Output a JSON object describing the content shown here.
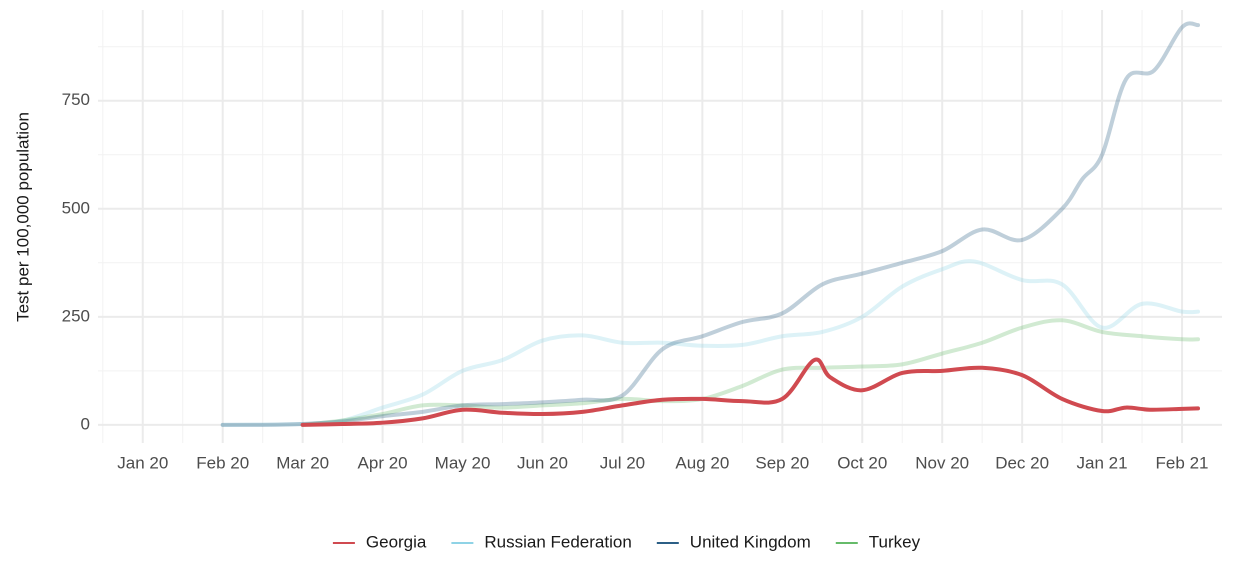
{
  "chart_data": {
    "type": "line",
    "ylabel": "Test per 100,000 population",
    "xlim": [
      -0.56,
      13.5
    ],
    "xticks": [
      {
        "value": 0,
        "label": "Jan 20"
      },
      {
        "value": 1,
        "label": "Feb 20"
      },
      {
        "value": 2,
        "label": "Mar 20"
      },
      {
        "value": 3,
        "label": "Apr 20"
      },
      {
        "value": 4,
        "label": "May 20"
      },
      {
        "value": 5,
        "label": "Jun 20"
      },
      {
        "value": 6,
        "label": "Jul 20"
      },
      {
        "value": 7,
        "label": "Aug 20"
      },
      {
        "value": 8,
        "label": "Sep 20"
      },
      {
        "value": 9,
        "label": "Oct 20"
      },
      {
        "value": 10,
        "label": "Nov 20"
      },
      {
        "value": 11,
        "label": "Dec 20"
      },
      {
        "value": 12,
        "label": "Jan 21"
      },
      {
        "value": 13,
        "label": "Feb 21"
      }
    ],
    "ylim": [
      -42,
      960
    ],
    "yticks": [
      0,
      250,
      500,
      750
    ],
    "grid": true,
    "legend": "bottom",
    "series": [
      {
        "name": "Georgia",
        "color": "#d04a50",
        "alpha": 1,
        "x": [
          2,
          2.5,
          3,
          3.5,
          4,
          4.5,
          5,
          5.5,
          6,
          6.5,
          7,
          7.5,
          8,
          8.4,
          8.6,
          9,
          9.5,
          10,
          10.5,
          11,
          11.5,
          12,
          12.3,
          12.6,
          13,
          13.2
        ],
        "values": [
          0,
          2,
          5,
          15,
          35,
          28,
          25,
          30,
          45,
          58,
          60,
          55,
          60,
          150,
          110,
          80,
          120,
          125,
          132,
          115,
          60,
          32,
          40,
          35,
          37,
          38
        ]
      },
      {
        "name": "Russian Federation",
        "color": "#8fd3e6",
        "alpha": 0.3,
        "x": [
          1,
          2,
          2.5,
          3,
          3.5,
          4,
          4.5,
          5,
          5.5,
          6,
          6.5,
          7,
          7.5,
          8,
          8.5,
          9,
          9.5,
          10,
          10.4,
          11,
          11.5,
          12,
          12.5,
          13,
          13.2
        ],
        "values": [
          0,
          2,
          10,
          40,
          70,
          125,
          150,
          195,
          207,
          190,
          190,
          183,
          185,
          205,
          215,
          250,
          320,
          360,
          378,
          335,
          325,
          225,
          280,
          262,
          262
        ]
      },
      {
        "name": "United Kingdom",
        "color": "#2c5f86",
        "alpha": 0.3,
        "x": [
          1,
          1.5,
          2,
          2.5,
          3,
          3.5,
          4,
          4.5,
          5,
          5.5,
          6,
          6.5,
          7,
          7.5,
          8,
          8.5,
          9,
          9.5,
          10,
          10.5,
          11,
          11.5,
          11.75,
          12,
          12.3,
          12.65,
          13,
          13.2
        ],
        "values": [
          0,
          0,
          2,
          8,
          20,
          30,
          45,
          48,
          52,
          58,
          68,
          175,
          205,
          238,
          258,
          325,
          350,
          375,
          402,
          452,
          428,
          500,
          568,
          625,
          800,
          820,
          920,
          925
        ]
      },
      {
        "name": "Turkey",
        "color": "#66bb6a",
        "alpha": 0.3,
        "x": [
          2,
          2.5,
          3,
          3.5,
          4,
          4.5,
          5,
          5.5,
          6,
          6.5,
          7,
          7.5,
          8,
          8.5,
          9,
          9.5,
          10,
          10.5,
          11,
          11.5,
          12,
          12.5,
          13,
          13.2
        ],
        "values": [
          0,
          10,
          25,
          45,
          45,
          40,
          45,
          50,
          60,
          55,
          60,
          90,
          128,
          132,
          135,
          140,
          165,
          190,
          225,
          242,
          215,
          205,
          198,
          198
        ]
      }
    ]
  }
}
